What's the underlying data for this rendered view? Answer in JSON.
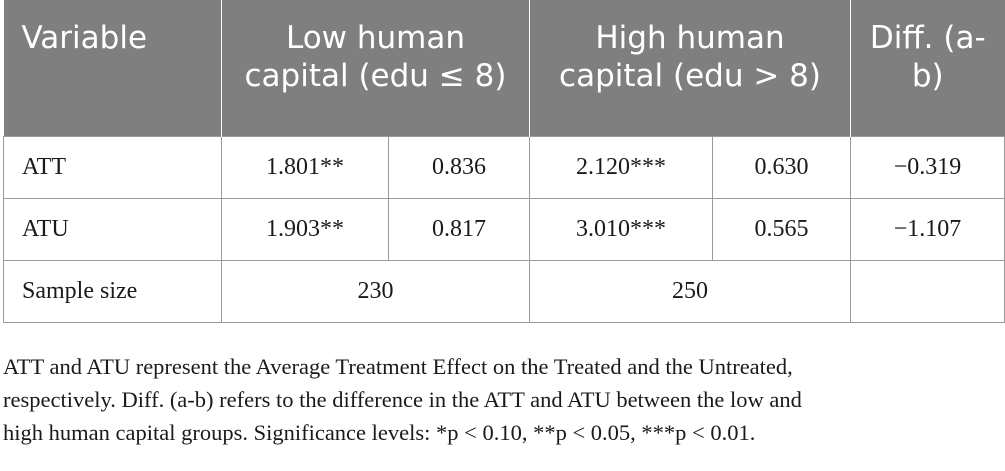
{
  "table": {
    "headers": {
      "variable": "Variable",
      "low": "Low human capital (edu ≤ 8)",
      "high": "High human capital (edu > 8)",
      "diff": "Diff. (a-b)"
    },
    "rows": [
      {
        "label": "ATT",
        "low_coef": "1.801**",
        "low_se": "0.836",
        "high_coef": "2.120***",
        "high_se": "0.630",
        "diff": "−0.319"
      },
      {
        "label": "ATU",
        "low_coef": "1.903**",
        "low_se": "0.817",
        "high_coef": "3.010***",
        "high_se": "0.565",
        "diff": "−1.107"
      }
    ],
    "sample": {
      "label": "Sample size",
      "low": "230",
      "high": "250",
      "diff": ""
    }
  },
  "note": {
    "line1": "ATT and ATU represent the Average Treatment Effect on the Treated and the Untreated,",
    "line2": "respectively. Diff. (a-b) refers to the difference in the ATT and ATU between the low and",
    "line3": "high human capital groups. Significance levels: *p < 0.10, **p < 0.05, ***p < 0.01."
  }
}
